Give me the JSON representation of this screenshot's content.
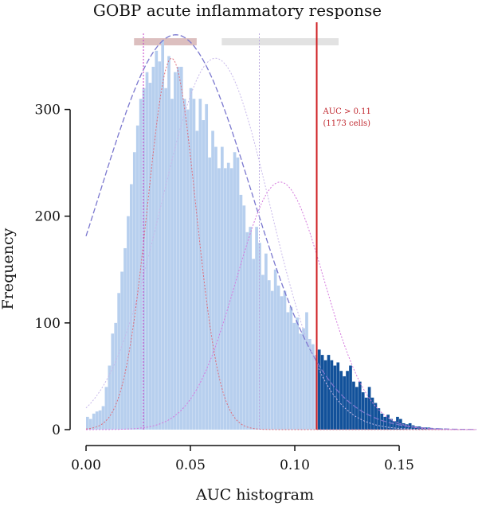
{
  "chart_data": {
    "type": "histogram",
    "title": "GOBP acute inflammatory response",
    "xlabel": "AUC histogram",
    "ylabel": "Frequency",
    "xlim": [
      0,
      0.187
    ],
    "ylim": [
      0,
      375
    ],
    "x_ticks": [
      0.0,
      0.05,
      0.1,
      0.15
    ],
    "x_tick_labels": [
      "0.00",
      "0.05",
      "0.10",
      "0.15"
    ],
    "y_ticks": [
      0,
      100,
      200,
      300
    ],
    "y_tick_labels": [
      "0",
      "100",
      "200",
      "300"
    ],
    "bin_width": 0.0015,
    "bin_start": 0.0,
    "counts": [
      12,
      10,
      15,
      17,
      18,
      22,
      40,
      60,
      90,
      100,
      128,
      148,
      170,
      200,
      230,
      260,
      285,
      310,
      320,
      335,
      325,
      340,
      355,
      345,
      365,
      320,
      350,
      310,
      335,
      340,
      340,
      310,
      300,
      320,
      310,
      280,
      310,
      290,
      305,
      255,
      280,
      265,
      245,
      265,
      245,
      250,
      245,
      260,
      255,
      220,
      210,
      185,
      190,
      160,
      190,
      175,
      145,
      165,
      140,
      130,
      150,
      135,
      125,
      130,
      110,
      115,
      100,
      105,
      90,
      95,
      110,
      85,
      80,
      70,
      75,
      70,
      65,
      70,
      65,
      60,
      63,
      55,
      50,
      55,
      60,
      45,
      40,
      45,
      35,
      30,
      40,
      30,
      25,
      20,
      15,
      12,
      14,
      10,
      8,
      12,
      10,
      6,
      5,
      6,
      4,
      3,
      3,
      2,
      2,
      2,
      1,
      1,
      1,
      1,
      0,
      0
    ],
    "threshold": {
      "value": 0.1105,
      "label_line1": "AUC > 0.11",
      "label_line2": "(1173 cells)"
    },
    "fitted_curves": [
      {
        "style": "solid-blue",
        "mean": 0.043,
        "sd": 0.036,
        "peak": 370
      },
      {
        "style": "dotted-blue",
        "mean": 0.062,
        "sd": 0.026,
        "peak": 348
      },
      {
        "style": "dotted-red",
        "mean": 0.041,
        "sd": 0.0115,
        "peak": 348
      },
      {
        "style": "dotted-pink",
        "mean": 0.093,
        "sd": 0.021,
        "peak": 232
      }
    ],
    "reference_lines": [
      {
        "value": 0.0275,
        "color": "#c23ac6"
      },
      {
        "value": 0.083,
        "color": "#b9a8e0"
      }
    ],
    "top_bars": [
      {
        "from": 0.023,
        "to": 0.053,
        "color": "#dcbfbf"
      },
      {
        "from": 0.065,
        "to": 0.121,
        "color": "#e2e2e2"
      }
    ],
    "colors": {
      "bar_below": "#b7cfee",
      "bar_above": "#12519a",
      "threshold": "#cf2024"
    }
  }
}
